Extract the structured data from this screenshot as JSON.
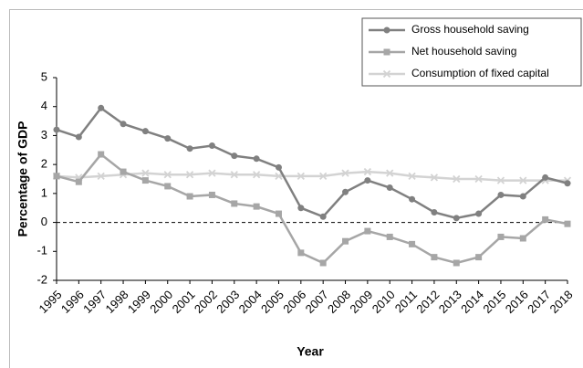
{
  "chart_data": {
    "type": "line",
    "x_label": "Year",
    "y_label": "Percentage of GDP",
    "categories": [
      "1995",
      "1996",
      "1997",
      "1998",
      "1999",
      "2000",
      "2001",
      "2002",
      "2003",
      "2004",
      "2005",
      "2006",
      "2007",
      "2008",
      "2009",
      "2010",
      "2011",
      "2012",
      "2013",
      "2014",
      "2015",
      "2016",
      "2017",
      "2018"
    ],
    "series": [
      {
        "name": "Gross household saving",
        "color": "#808080",
        "marker": "circle",
        "values": [
          3.2,
          2.95,
          3.95,
          3.4,
          3.15,
          2.9,
          2.55,
          2.65,
          2.3,
          2.2,
          1.9,
          0.5,
          0.2,
          1.05,
          1.45,
          1.2,
          0.8,
          0.35,
          0.15,
          0.3,
          0.95,
          0.9,
          1.55,
          1.35
        ]
      },
      {
        "name": "Net household saving",
        "color": "#a6a6a6",
        "marker": "square",
        "values": [
          1.6,
          1.4,
          2.35,
          1.75,
          1.45,
          1.25,
          0.9,
          0.95,
          0.65,
          0.55,
          0.3,
          -1.05,
          -1.4,
          -0.65,
          -0.3,
          -0.5,
          -0.75,
          -1.2,
          -1.4,
          -1.2,
          -0.5,
          -0.55,
          0.1,
          -0.05
        ]
      },
      {
        "name": "Consumption of fixed capital",
        "color": "#d3d3d3",
        "marker": "x",
        "values": [
          1.6,
          1.55,
          1.6,
          1.65,
          1.7,
          1.65,
          1.65,
          1.7,
          1.65,
          1.65,
          1.6,
          1.6,
          1.6,
          1.7,
          1.75,
          1.7,
          1.6,
          1.55,
          1.5,
          1.5,
          1.45,
          1.45,
          1.45,
          1.45
        ]
      }
    ],
    "ylim": [
      -2,
      5
    ],
    "yticks": [
      -2,
      -1,
      0,
      1,
      2,
      3,
      4,
      5
    ],
    "grid": false,
    "zero_line": true,
    "legend": "upper right"
  }
}
